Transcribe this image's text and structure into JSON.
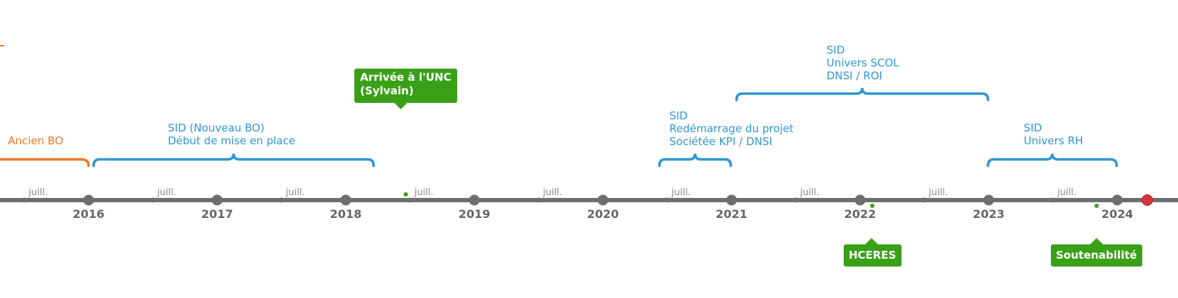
{
  "colors": {
    "axis": "#6e6e6e",
    "year_text": "#666666",
    "minor_text": "#888888",
    "orange": "#e87b2a",
    "blue": "#2f96d3",
    "green": "#3aa018",
    "red": "#d9323a"
  },
  "axis": {
    "years": [
      "2016",
      "2017",
      "2018",
      "2019",
      "2020",
      "2021",
      "2022",
      "2023",
      "2024"
    ],
    "minor_label": "juill."
  },
  "periods": [
    {
      "id": "ancien-bo",
      "color": "orange",
      "lines": [
        "Ancien BO"
      ]
    },
    {
      "id": "sid-nouveau-bo",
      "color": "blue",
      "lines": [
        "SID (Nouveau BO)",
        "Début de mise en place"
      ]
    },
    {
      "id": "sid-redemarrage",
      "color": "blue",
      "lines": [
        "SID",
        "Redémarrage du projet",
        "Sociétée KPI / DNSI"
      ]
    },
    {
      "id": "sid-univers-scol",
      "color": "blue",
      "lines": [
        "SID",
        "Univers SCOL",
        "DNSI / ROI"
      ]
    },
    {
      "id": "sid-univers-rh",
      "color": "blue",
      "lines": [
        "SID",
        "Univers RH"
      ]
    }
  ],
  "events": [
    {
      "id": "arrivee-unc",
      "lines": [
        "Arrivée à l'UNC",
        "(Sylvain)"
      ]
    },
    {
      "id": "hceres",
      "lines": [
        "HCERES"
      ]
    },
    {
      "id": "soutenabilite",
      "lines": [
        "Soutenabilité"
      ]
    }
  ]
}
